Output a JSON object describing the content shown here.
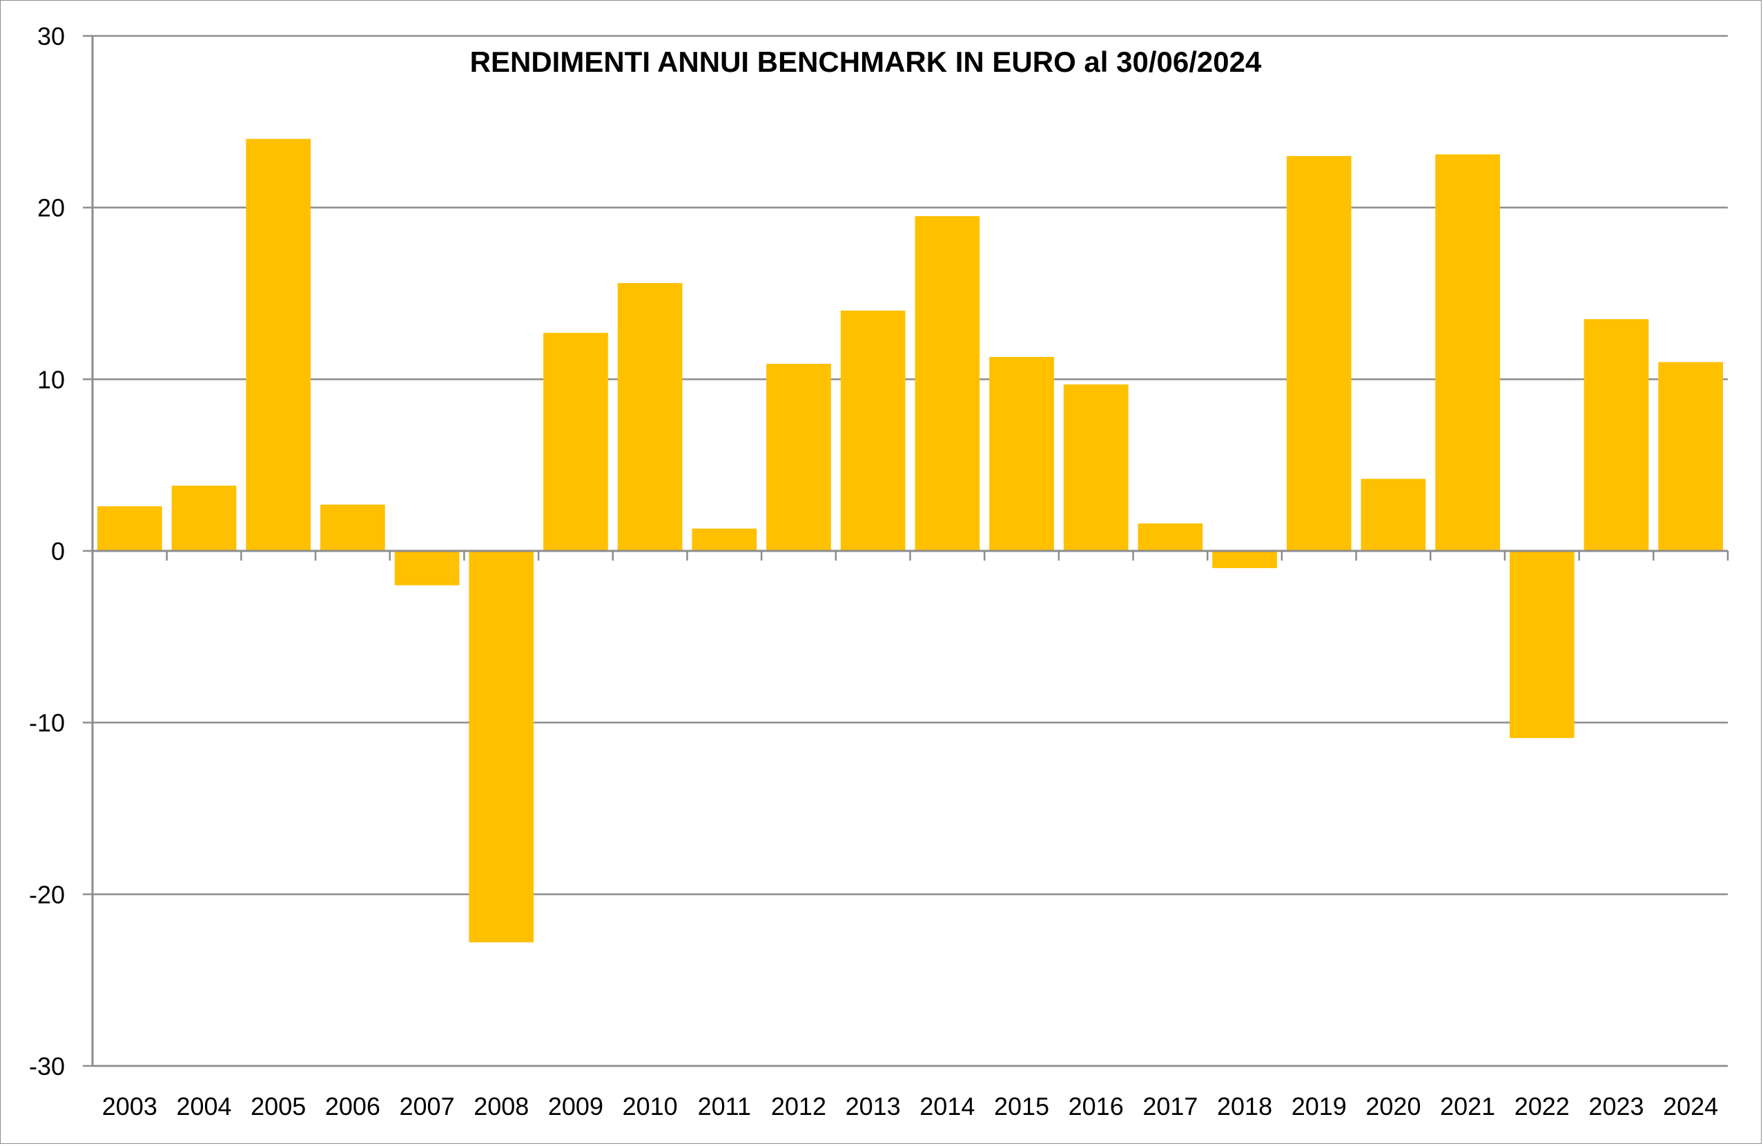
{
  "chart_data": {
    "type": "bar",
    "title": "RENDIMENTI ANNUI BENCHMARK IN EURO al 30/06/2024",
    "xlabel": "",
    "ylabel": "",
    "categories": [
      "2003",
      "2004",
      "2005",
      "2006",
      "2007",
      "2008",
      "2009",
      "2010",
      "2011",
      "2012",
      "2013",
      "2014",
      "2015",
      "2016",
      "2017",
      "2018",
      "2019",
      "2020",
      "2021",
      "2022",
      "2023",
      "2024"
    ],
    "values": [
      2.6,
      3.8,
      24.0,
      2.7,
      -2.0,
      -22.8,
      12.7,
      15.6,
      1.3,
      10.9,
      14.0,
      19.5,
      11.3,
      9.7,
      1.6,
      -1.0,
      23.0,
      4.2,
      23.1,
      -10.9,
      13.5,
      11.0
    ],
    "ylim": [
      -30,
      30
    ],
    "yticks": [
      30,
      20,
      10,
      0,
      -10,
      -20,
      -30
    ],
    "grid": true,
    "legend": "none",
    "bar_color": "#FFC000",
    "grid_color": "#8C8C8C"
  }
}
